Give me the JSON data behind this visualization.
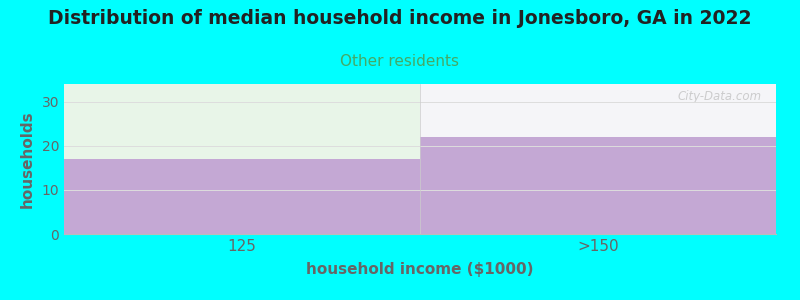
{
  "title": "Distribution of median household income in Jonesboro, GA in 2022",
  "subtitle": "Other residents",
  "xlabel": "household income ($1000)",
  "ylabel": "households",
  "categories": [
    "125",
    ">150"
  ],
  "values": [
    17,
    22
  ],
  "bar_color": "#C4A8D4",
  "bg_color": "#00FFFF",
  "plot_bg_left": "#E8F5E8",
  "plot_bg_right": "#F5F5F8",
  "title_fontsize": 13.5,
  "title_color": "#222222",
  "subtitle_color": "#44AA66",
  "ylabel_color": "#666666",
  "xlabel_color": "#666666",
  "tick_color": "#666666",
  "ylim": [
    0,
    34
  ],
  "yticks": [
    0,
    10,
    20,
    30
  ],
  "grid_color": "#DDDDDD",
  "watermark": "City-Data.com"
}
